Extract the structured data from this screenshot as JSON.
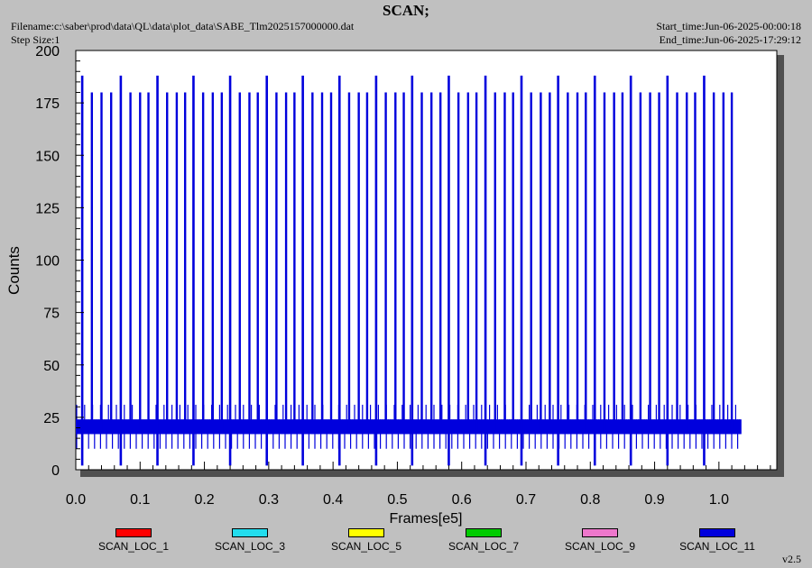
{
  "header": {
    "title": "SCAN;",
    "filename": "Filename:c:\\saber\\prod\\data\\QL\\data\\plot_data\\SABE_Tlm2025157000000.dat",
    "step_size": "Step Size:1",
    "start_time": "Start_time:Jun-06-2025-00:00:18",
    "end_time": "End_time:Jun-06-2025-17:29:12"
  },
  "version": "v2.5",
  "colors": {
    "background": "#c0c0c0",
    "plot_area": "#ffffff",
    "series_main": "#0000dd"
  },
  "chart_data": {
    "type": "line",
    "title": "SCAN;",
    "xlabel": "Frames[e5]",
    "ylabel": "Counts",
    "xlim": [
      0.0,
      1.09
    ],
    "ylim": [
      0,
      200
    ],
    "x_ticks": [
      "0.0",
      "0.1",
      "0.2",
      "0.3",
      "0.4",
      "0.5",
      "0.6",
      "0.7",
      "0.8",
      "0.9",
      "1.0"
    ],
    "y_ticks": [
      "0",
      "25",
      "50",
      "75",
      "100",
      "125",
      "150",
      "175",
      "200"
    ],
    "grid": false,
    "legend_position": "bottom",
    "series": [
      {
        "name": "SCAN_LOC_1",
        "color": "#ff0000",
        "values": []
      },
      {
        "name": "SCAN_LOC_3",
        "color": "#22ddee",
        "values": []
      },
      {
        "name": "SCAN_LOC_5",
        "color": "#ffff00",
        "values": []
      },
      {
        "name": "SCAN_LOC_7",
        "color": "#00cc00",
        "values": []
      },
      {
        "name": "SCAN_LOC_9",
        "color": "#ee77cc",
        "values": []
      },
      {
        "name": "SCAN_LOC_11",
        "color": "#0000dd",
        "x_range": [
          0.0,
          1.035
        ],
        "baseline_band": [
          17,
          24
        ],
        "baseline_low": 10,
        "baseline_high": 31,
        "spike_height_typical": 180,
        "spike_height_max": 188,
        "spike_x_188": [
          0.01,
          0.07,
          0.127,
          0.183,
          0.24,
          0.297,
          0.353,
          0.41,
          0.467,
          0.523,
          0.58,
          0.637,
          0.693,
          0.75,
          0.807,
          0.863,
          0.92,
          0.977
        ],
        "spike_x_180": [
          0.025,
          0.04,
          0.055,
          0.085,
          0.1,
          0.113,
          0.142,
          0.157,
          0.17,
          0.198,
          0.213,
          0.227,
          0.255,
          0.27,
          0.283,
          0.312,
          0.327,
          0.34,
          0.368,
          0.383,
          0.397,
          0.425,
          0.44,
          0.453,
          0.482,
          0.497,
          0.51,
          0.538,
          0.553,
          0.567,
          0.595,
          0.61,
          0.623,
          0.652,
          0.667,
          0.68,
          0.708,
          0.723,
          0.737,
          0.765,
          0.78,
          0.793,
          0.822,
          0.837,
          0.85,
          0.878,
          0.893,
          0.907,
          0.935,
          0.95,
          0.963,
          0.992,
          1.007,
          1.02
        ]
      }
    ]
  }
}
